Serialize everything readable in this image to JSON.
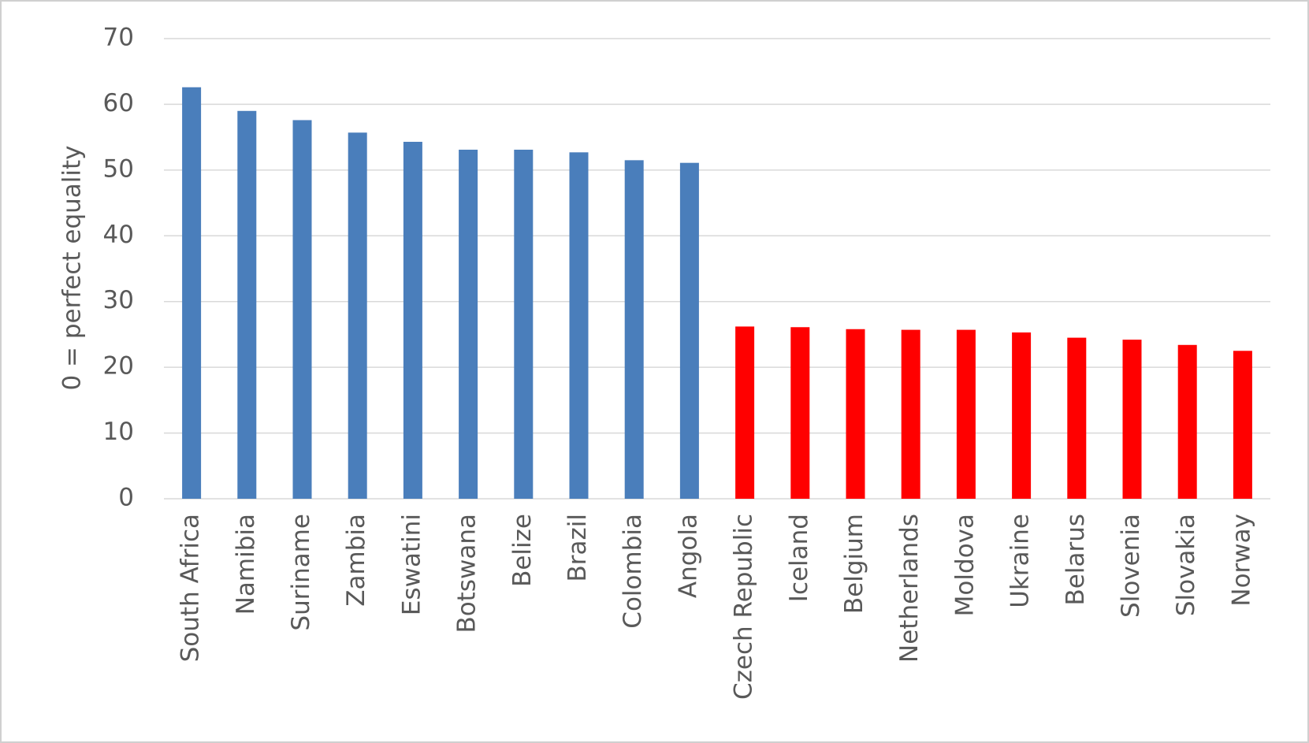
{
  "chart_data": {
    "type": "bar",
    "y_axis_label": "0 = perfect equality",
    "categories": [
      "South Africa",
      "Namibia",
      "Suriname",
      "Zambia",
      "Eswatini",
      "Botswana",
      "Belize",
      "Brazil",
      "Colombia",
      "Angola",
      "Czech Republic",
      "Iceland",
      "Belgium",
      "Netherlands",
      "Moldova",
      "Ukraine",
      "Belarus",
      "Slovenia",
      "Slovakia",
      "Norway"
    ],
    "values": [
      62.6,
      59.0,
      57.6,
      55.7,
      54.3,
      53.1,
      53.1,
      52.7,
      51.5,
      51.1,
      26.2,
      26.1,
      25.8,
      25.7,
      25.7,
      25.3,
      24.5,
      24.2,
      23.4,
      22.5
    ],
    "colors": [
      "#4a7ebb",
      "#4a7ebb",
      "#4a7ebb",
      "#4a7ebb",
      "#4a7ebb",
      "#4a7ebb",
      "#4a7ebb",
      "#4a7ebb",
      "#4a7ebb",
      "#4a7ebb",
      "#ff0000",
      "#ff0000",
      "#ff0000",
      "#ff0000",
      "#ff0000",
      "#ff0000",
      "#ff0000",
      "#ff0000",
      "#ff0000",
      "#ff0000"
    ],
    "ylim": [
      0,
      70
    ],
    "yticks": [
      0,
      10,
      20,
      30,
      40,
      50,
      60,
      70
    ],
    "grid": true
  }
}
